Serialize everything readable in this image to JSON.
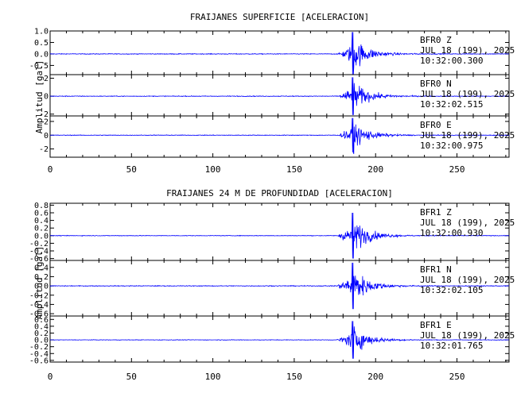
{
  "chart_data": [
    {
      "type": "line",
      "title": "FRAIJANES SUPERFICIE [ACELERACION]",
      "ylabel": "Amplitud [gal]",
      "xlim": [
        0,
        282
      ],
      "xticks": [
        0,
        50,
        100,
        150,
        200,
        250
      ],
      "line_color": "#0000ff",
      "event_onset": 177,
      "event_peak": 186,
      "traces": [
        {
          "station": "BFR0",
          "component": "Z",
          "date": "JUL 18 (199), 2025",
          "time": "10:32:00.300",
          "ylim": [
            -0.9,
            1.0
          ],
          "yticks": [
            "1.0",
            "0.5",
            "0.0",
            "-0.5"
          ],
          "ytick_values": [
            1.0,
            0.5,
            0.0,
            -0.5
          ],
          "peak_amplitude": 0.95,
          "noise_level": 0.02
        },
        {
          "station": "BFR0",
          "component": "N",
          "date": "JUL 18 (199), 2025",
          "time": "10:32:02.515",
          "ylim": [
            -2.2,
            2.4
          ],
          "yticks": [
            "2",
            "0",
            "-2"
          ],
          "ytick_values": [
            2,
            0,
            -2
          ],
          "peak_amplitude": 2.1,
          "noise_level": 0.05
        },
        {
          "station": "BFR0",
          "component": "E",
          "date": "JUL 18 (199), 2025",
          "time": "10:32:00.975",
          "ylim": [
            -3.2,
            2.8
          ],
          "yticks": [
            "2",
            "0",
            "-2"
          ],
          "ytick_values": [
            2,
            0,
            -2
          ],
          "peak_amplitude": 2.5,
          "noise_level": 0.06
        }
      ]
    },
    {
      "type": "line",
      "title": "FRAIJANES 24 M DE PROFUNDIDAD [ACELERACION]",
      "ylabel": "Amplitud [gal]",
      "xlim": [
        0,
        282
      ],
      "xticks": [
        0,
        50,
        100,
        150,
        200,
        250
      ],
      "line_color": "#0000ff",
      "event_onset": 176,
      "event_peak": 186,
      "traces": [
        {
          "station": "BFR1",
          "component": "Z",
          "date": "JUL 18 (199), 2025",
          "time": "10:32:00.930",
          "ylim": [
            -0.65,
            0.85
          ],
          "yticks": [
            "0.8",
            "0.6",
            "0.4",
            "0.2",
            "0.0",
            "-0.2",
            "-0.4",
            "-0.6"
          ],
          "ytick_values": [
            0.8,
            0.6,
            0.4,
            0.2,
            0.0,
            -0.2,
            -0.4,
            -0.6
          ],
          "peak_amplitude": 0.6,
          "noise_level": 0.01
        },
        {
          "station": "BFR1",
          "component": "N",
          "date": "JUL 18 (199), 2025",
          "time": "10:32:02.105",
          "ylim": [
            -0.65,
            0.55
          ],
          "yticks": [
            "0.4",
            "0.2",
            "0.0",
            "-0.2",
            "-0.4",
            "-0.6"
          ],
          "ytick_values": [
            0.4,
            0.2,
            0.0,
            -0.2,
            -0.4,
            -0.6
          ],
          "peak_amplitude": 0.5,
          "noise_level": 0.01
        },
        {
          "station": "BFR1",
          "component": "E",
          "date": "JUL 18 (199), 2025",
          "time": "10:32:01.765",
          "ylim": [
            -0.65,
            0.7
          ],
          "yticks": [
            "0.6",
            "0.4",
            "0.2",
            "0.0",
            "-0.2",
            "-0.4",
            "-0.6"
          ],
          "ytick_values": [
            0.6,
            0.4,
            0.2,
            0.0,
            -0.2,
            -0.4,
            -0.6
          ],
          "peak_amplitude": 0.55,
          "noise_level": 0.01
        }
      ]
    }
  ]
}
